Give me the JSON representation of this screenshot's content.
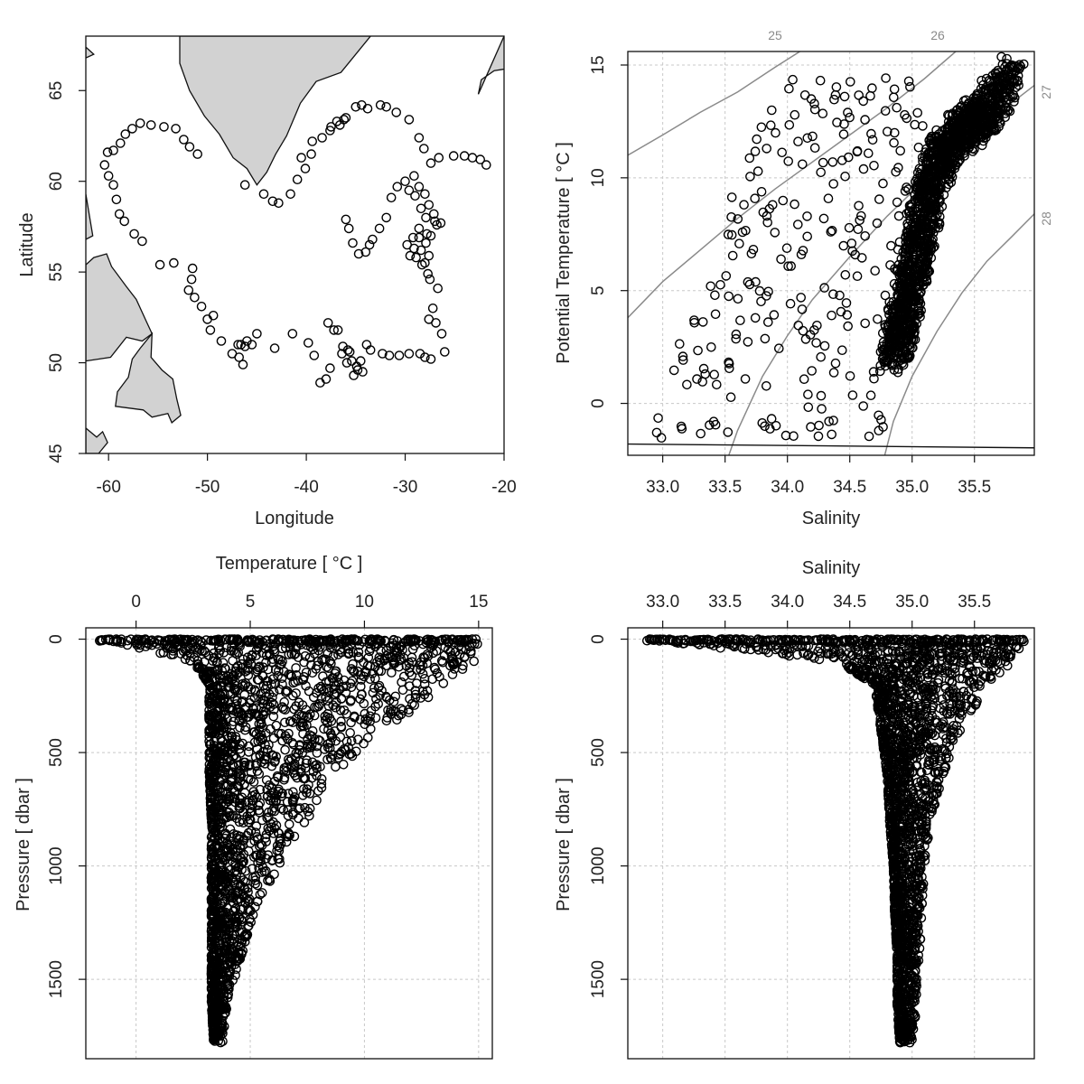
{
  "chart_data": [
    {
      "type": "scatter",
      "panel": "map",
      "title": "",
      "xlabel": "Longitude",
      "ylabel": "Latitude",
      "xlim": [
        -62.3,
        -20
      ],
      "ylim": [
        45,
        68
      ],
      "xticks": [
        "-60",
        "-50",
        "-40",
        "-30",
        "-20"
      ],
      "yticks": [
        "45",
        "50",
        "55",
        "60",
        "65"
      ],
      "grid": false,
      "land_color": "#d2d2d2",
      "station_tracks": [
        [
          [
            -60.4,
            60.9
          ],
          [
            -60.1,
            61.6
          ],
          [
            -59.5,
            61.7
          ],
          [
            -58.8,
            62.1
          ],
          [
            -58.3,
            62.6
          ],
          [
            -57.6,
            62.9
          ],
          [
            -56.8,
            63.2
          ],
          [
            -55.7,
            63.1
          ],
          [
            -54.4,
            63.0
          ],
          [
            -53.2,
            62.9
          ],
          [
            -52.4,
            62.3
          ],
          [
            -51.8,
            61.9
          ],
          [
            -51.0,
            61.5
          ]
        ],
        [
          [
            -60.0,
            60.3
          ],
          [
            -59.5,
            59.8
          ],
          [
            -59.2,
            59.0
          ],
          [
            -58.9,
            58.2
          ],
          [
            -58.4,
            57.8
          ],
          [
            -57.4,
            57.1
          ],
          [
            -56.6,
            56.7
          ]
        ],
        [
          [
            -54.8,
            55.4
          ],
          [
            -53.4,
            55.5
          ],
          [
            -51.5,
            55.2
          ],
          [
            -51.6,
            54.6
          ],
          [
            -51.9,
            54.0
          ],
          [
            -51.3,
            53.6
          ],
          [
            -50.6,
            53.1
          ],
          [
            -50.0,
            52.4
          ],
          [
            -49.4,
            52.6
          ],
          [
            -49.7,
            51.8
          ]
        ],
        [
          [
            -47.5,
            50.5
          ],
          [
            -46.8,
            50.3
          ],
          [
            -46.4,
            49.9
          ],
          [
            -46.6,
            51.0
          ],
          [
            -46.0,
            51.2
          ],
          [
            -45.0,
            51.6
          ],
          [
            -45.5,
            51.0
          ]
        ],
        [
          [
            -48.6,
            51.2
          ],
          [
            -46.9,
            51.0
          ],
          [
            -46.2,
            50.9
          ]
        ],
        [
          [
            -43.2,
            50.8
          ],
          [
            -41.4,
            51.6
          ],
          [
            -39.8,
            51.1
          ],
          [
            -39.2,
            50.4
          ],
          [
            -38.6,
            48.9
          ],
          [
            -38.0,
            49.1
          ],
          [
            -37.6,
            49.7
          ],
          [
            -36.8,
            51.8
          ],
          [
            -36.4,
            50.5
          ],
          [
            -35.9,
            50.0
          ],
          [
            -35.6,
            50.6
          ],
          [
            -35.2,
            49.3
          ],
          [
            -34.8,
            49.6
          ],
          [
            -34.5,
            50.1
          ],
          [
            -33.9,
            51.0
          ],
          [
            -33.5,
            50.7
          ],
          [
            -32.3,
            50.5
          ],
          [
            -31.6,
            50.4
          ],
          [
            -30.6,
            50.4
          ],
          [
            -29.6,
            50.5
          ],
          [
            -28.5,
            50.5
          ],
          [
            -28.0,
            50.3
          ],
          [
            -27.4,
            50.2
          ],
          [
            -26.0,
            50.6
          ]
        ],
        [
          [
            -37.8,
            52.2
          ],
          [
            -37.2,
            51.8
          ],
          [
            -36.3,
            50.9
          ],
          [
            -35.8,
            50.7
          ],
          [
            -35.4,
            50.1
          ],
          [
            -34.9,
            49.8
          ],
          [
            -34.3,
            49.5
          ]
        ],
        [
          [
            -46.2,
            59.8
          ],
          [
            -44.3,
            59.3
          ],
          [
            -43.4,
            58.9
          ],
          [
            -42.8,
            58.8
          ],
          [
            -41.6,
            59.3
          ],
          [
            -40.9,
            60.1
          ],
          [
            -40.1,
            60.7
          ],
          [
            -39.5,
            61.5
          ],
          [
            -38.4,
            62.4
          ],
          [
            -37.6,
            62.8
          ],
          [
            -36.9,
            63.3
          ],
          [
            -36.2,
            63.4
          ],
          [
            -35.0,
            64.1
          ],
          [
            -34.4,
            64.2
          ],
          [
            -33.8,
            64.0
          ],
          [
            -32.5,
            64.2
          ],
          [
            -31.9,
            64.1
          ],
          [
            -30.9,
            63.8
          ],
          [
            -29.6,
            63.4
          ],
          [
            -28.6,
            62.4
          ],
          [
            -28.1,
            61.8
          ],
          [
            -27.4,
            61.0
          ],
          [
            -26.6,
            61.3
          ],
          [
            -25.1,
            61.4
          ],
          [
            -24.0,
            61.4
          ],
          [
            -23.2,
            61.3
          ],
          [
            -22.4,
            61.2
          ],
          [
            -21.8,
            60.9
          ]
        ],
        [
          [
            -37.5,
            63.0
          ],
          [
            -36.6,
            63.1
          ],
          [
            -36.0,
            63.5
          ],
          [
            -40.5,
            61.3
          ],
          [
            -39.4,
            62.2
          ]
        ],
        [
          [
            -36.0,
            57.9
          ],
          [
            -35.7,
            57.4
          ],
          [
            -35.3,
            56.6
          ],
          [
            -34.7,
            56.0
          ],
          [
            -34.0,
            56.1
          ],
          [
            -33.6,
            56.5
          ],
          [
            -33.3,
            56.8
          ],
          [
            -32.6,
            57.4
          ],
          [
            -31.9,
            58.0
          ],
          [
            -31.4,
            59.1
          ],
          [
            -30.8,
            59.7
          ],
          [
            -30.0,
            60.0
          ],
          [
            -29.1,
            60.3
          ],
          [
            -28.6,
            59.7
          ],
          [
            -28.0,
            59.3
          ],
          [
            -27.6,
            58.7
          ],
          [
            -27.1,
            58.2
          ],
          [
            -26.8,
            57.6
          ],
          [
            -27.4,
            57.0
          ],
          [
            -27.9,
            56.6
          ],
          [
            -28.4,
            56.2
          ],
          [
            -28.9,
            55.8
          ],
          [
            -29.5,
            55.9
          ],
          [
            -28.3,
            55.4
          ],
          [
            -27.5,
            54.6
          ],
          [
            -26.7,
            54.1
          ],
          [
            -27.2,
            53.0
          ],
          [
            -27.6,
            52.4
          ],
          [
            -26.9,
            52.2
          ],
          [
            -26.3,
            51.6
          ]
        ],
        [
          [
            -29.6,
            59.5
          ],
          [
            -29.0,
            59.2
          ],
          [
            -28.4,
            58.5
          ],
          [
            -27.9,
            58.0
          ],
          [
            -28.6,
            57.4
          ],
          [
            -29.2,
            56.9
          ],
          [
            -29.8,
            56.5
          ],
          [
            -29.1,
            56.3
          ],
          [
            -28.6,
            56.9
          ],
          [
            -27.8,
            57.1
          ],
          [
            -27.0,
            57.8
          ],
          [
            -26.4,
            57.7
          ],
          [
            -27.6,
            55.9
          ],
          [
            -28.0,
            55.5
          ],
          [
            -27.7,
            54.9
          ]
        ]
      ]
    },
    {
      "type": "scatter",
      "panel": "ts-diagram",
      "title": "",
      "xlabel": "Salinity",
      "ylabel": "Potential Temperature [ °C ]",
      "xlim": [
        32.72,
        35.98
      ],
      "ylim": [
        -2.3,
        15.6
      ],
      "xticks": [
        "33.0",
        "33.5",
        "34.0",
        "34.5",
        "35.0",
        "35.5"
      ],
      "yticks": [
        "0",
        "5",
        "10",
        "15"
      ],
      "grid": true,
      "isopycnal_labels": [
        "25",
        "26",
        "27",
        "28"
      ],
      "freezing_line": [
        [
          32.72,
          -1.8
        ],
        [
          35.98,
          -1.97
        ]
      ],
      "water_mass_core": [
        [
          34.85,
          2.2
        ],
        [
          34.92,
          3.5
        ],
        [
          34.98,
          5.0
        ],
        [
          35.05,
          7.0
        ],
        [
          35.12,
          9.0
        ],
        [
          35.2,
          10.5
        ],
        [
          35.3,
          11.5
        ],
        [
          35.45,
          12.3
        ],
        [
          35.6,
          13.0
        ],
        [
          35.8,
          14.5
        ]
      ]
    },
    {
      "type": "scatter",
      "panel": "temperature-profile",
      "title": "",
      "xlabel": "Temperature [ °C ]",
      "ylabel": "Pressure [ dbar ]",
      "xlim": [
        -2.2,
        15.6
      ],
      "ylim": [
        1850,
        -50
      ],
      "xticks": [
        "0",
        "5",
        "10",
        "15"
      ],
      "yticks": [
        "0",
        "500",
        "1000",
        "1500"
      ],
      "grid": true,
      "envelope": [
        [
          0,
          -1.6,
          15.0
        ],
        [
          100,
          2.5,
          14.8
        ],
        [
          200,
          3.2,
          13.5
        ],
        [
          400,
          3.2,
          11.0
        ],
        [
          600,
          3.2,
          8.5
        ],
        [
          800,
          3.3,
          7.5
        ],
        [
          1000,
          3.3,
          6.3
        ],
        [
          1200,
          3.3,
          5.2
        ],
        [
          1400,
          3.3,
          4.6
        ],
        [
          1600,
          3.3,
          4.0
        ],
        [
          1780,
          3.4,
          3.8
        ]
      ]
    },
    {
      "type": "scatter",
      "panel": "salinity-profile",
      "title": "",
      "xlabel": "Salinity",
      "ylabel": "Pressure [ dbar ]",
      "xlim": [
        32.72,
        35.98
      ],
      "ylim": [
        1850,
        -50
      ],
      "xticks": [
        "33.0",
        "33.5",
        "34.0",
        "34.5",
        "35.0",
        "35.5"
      ],
      "yticks": [
        "0",
        "500",
        "1000",
        "1500"
      ],
      "grid": true,
      "envelope": [
        [
          0,
          32.85,
          35.9
        ],
        [
          100,
          34.4,
          35.8
        ],
        [
          200,
          34.7,
          35.6
        ],
        [
          400,
          34.75,
          35.4
        ],
        [
          600,
          34.8,
          35.25
        ],
        [
          800,
          34.82,
          35.15
        ],
        [
          1000,
          34.85,
          35.1
        ],
        [
          1200,
          34.86,
          35.08
        ],
        [
          1400,
          34.88,
          35.06
        ],
        [
          1600,
          34.88,
          35.03
        ],
        [
          1780,
          34.9,
          35.02
        ]
      ]
    }
  ]
}
